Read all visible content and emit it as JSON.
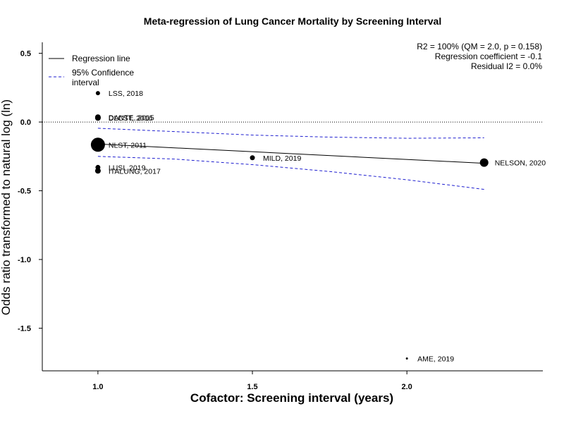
{
  "chart_data": {
    "type": "scatter",
    "title": "Meta-regression of  Lung Cancer Mortality by Screening Interval",
    "xlabel": "Cofactor:  Screening interval (years)",
    "ylabel": "Odds ratio transformed to natural log (ln)",
    "xlim": [
      0.82,
      2.44
    ],
    "ylim": [
      -1.81,
      0.58
    ],
    "x_ticks": [
      1.0,
      1.5,
      2.0
    ],
    "x_tick_labels": [
      "1.0",
      "1.5",
      "2.0"
    ],
    "y_ticks": [
      0.5,
      0.0,
      -0.5,
      -1.0,
      -1.5
    ],
    "y_tick_labels": [
      "0.5",
      "0.0",
      "-0.5",
      "-1.0",
      "-1.5"
    ],
    "grid": false,
    "reference_line_y": 0.0,
    "points": [
      {
        "label": "LSS, 2018",
        "x": 1.0,
        "y": 0.21,
        "size": 3
      },
      {
        "label": "DANTE, 2015",
        "x": 1.0,
        "y": 0.035,
        "size": 4
      },
      {
        "label": "DLCST, 2016",
        "x": 1.0,
        "y": 0.03,
        "size": 4
      },
      {
        "label": "NLST, 2011",
        "x": 1.0,
        "y": -0.165,
        "size": 10
      },
      {
        "label": "LUSI, 2019",
        "x": 1.0,
        "y": -0.33,
        "size": 3.5
      },
      {
        "label": "ITALUNG, 2017",
        "x": 1.0,
        "y": -0.355,
        "size": 4
      },
      {
        "label": "MILD, 2019",
        "x": 1.5,
        "y": -0.26,
        "size": 3.5
      },
      {
        "label": "NELSON, 2020",
        "x": 2.25,
        "y": -0.295,
        "size": 6
      },
      {
        "label": "AME, 2019",
        "x": 2.0,
        "y": -1.72,
        "size": 1.5
      }
    ],
    "regression_line": {
      "x": [
        1.0,
        2.25
      ],
      "y": [
        -0.16,
        -0.3
      ]
    },
    "confidence_upper": {
      "x": [
        1.0,
        1.25,
        1.5,
        1.75,
        2.0,
        2.25
      ],
      "y": [
        -0.045,
        -0.07,
        -0.095,
        -0.11,
        -0.118,
        -0.115
      ]
    },
    "confidence_lower": {
      "x": [
        1.0,
        1.25,
        1.5,
        1.75,
        2.0,
        2.25
      ],
      "y": [
        -0.25,
        -0.27,
        -0.31,
        -0.36,
        -0.42,
        -0.49
      ]
    },
    "legend": {
      "position": "top-left",
      "items": [
        {
          "label": "Regression line",
          "style": "solid",
          "color": "#000000"
        },
        {
          "label": "95% Confidence\ninterval",
          "style": "dashed",
          "color": "#1f1fd0"
        }
      ]
    },
    "stats": [
      "R2 = 100% (QM = 2.0, p = 0.158)",
      "Regression coefficient = -0.1",
      "Residual I2 = 0.0%"
    ],
    "colors": {
      "points": "#000000",
      "regression": "#000000",
      "confidence": "#1f1fd0",
      "reference": "#000000"
    }
  }
}
